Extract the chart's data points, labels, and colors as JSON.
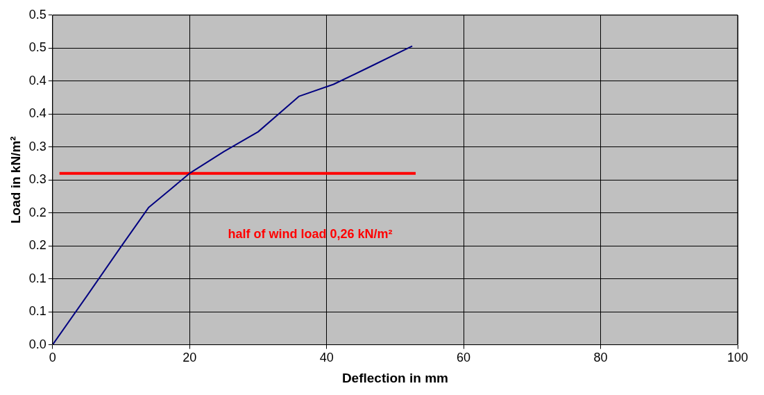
{
  "chart_data": {
    "type": "line",
    "xlabel": "Deflection in mm",
    "ylabel": "Load in kN/m²",
    "annotations": [
      "half of wind load 0,26 kN/m²"
    ],
    "series": [
      {
        "color": "#000080",
        "x": [
          0,
          5,
          10,
          14,
          17,
          20,
          25,
          30,
          36,
          41,
          46,
          52.5
        ],
        "values": [
          0,
          0.074,
          0.149,
          0.208,
          0.234,
          0.26,
          0.293,
          0.323,
          0.377,
          0.395,
          0.42,
          0.453
        ]
      },
      {
        "color": "#ff0000",
        "x": [
          1,
          53
        ],
        "values": [
          0.26,
          0.26
        ]
      }
    ],
    "xlim": [
      0,
      100
    ],
    "xticks": [
      0,
      20,
      40,
      60,
      80,
      100
    ],
    "ylim": [
      0,
      0.5
    ],
    "yticks": [
      {
        "value": 0,
        "label": "0.0"
      },
      {
        "value": 0.05,
        "label": "0.1"
      },
      {
        "value": 0.1,
        "label": "0.1"
      },
      {
        "value": 0.15,
        "label": "0.2"
      },
      {
        "value": 0.2,
        "label": "0.2"
      },
      {
        "value": 0.25,
        "label": "0.3"
      },
      {
        "value": 0.3,
        "label": "0.3"
      },
      {
        "value": 0.35,
        "label": "0.4"
      },
      {
        "value": 0.4,
        "label": "0.4"
      },
      {
        "value": 0.45,
        "label": "0.5"
      },
      {
        "value": 0.5,
        "label": "0.5"
      }
    ],
    "grid": true,
    "legend": false,
    "marker": "none",
    "line_style": "solid"
  }
}
